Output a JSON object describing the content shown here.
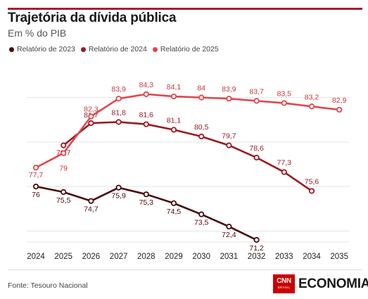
{
  "header": {
    "title": "Trajetória da dívida pública",
    "subtitle": "Em % do PIB"
  },
  "footer": {
    "source": "Fonte: Tesouro Nacional",
    "brand_logo": "CNN",
    "brand_logo_sub": "BRASIL",
    "brand_section": "ECONOMIA"
  },
  "chart_data": {
    "type": "line",
    "title": "Trajetória da dívida pública",
    "subtitle": "Em % do PIB",
    "x": [
      "2024",
      "2025",
      "2026",
      "2027",
      "2028",
      "2029",
      "2030",
      "2031",
      "2032",
      "2033",
      "2034",
      "2035"
    ],
    "ylim": [
      70,
      86
    ],
    "grid": true,
    "legend_position": "top-left",
    "series": [
      {
        "name": "Relatório de 2023",
        "color": "#4a0a0a",
        "values": [
          76,
          75.5,
          74.7,
          75.9,
          75.3,
          74.5,
          73.5,
          72.4,
          71.2,
          null,
          null,
          null
        ],
        "labels": [
          "76",
          "75,5",
          "74,7",
          "75,9",
          "75,3",
          "74,5",
          "73,5",
          "72,4",
          "71,2",
          null,
          null,
          null
        ]
      },
      {
        "name": "Relatório de 2024",
        "color": "#9a1a24",
        "values": [
          null,
          79.7,
          81.7,
          81.8,
          81.6,
          81.1,
          80.5,
          79.7,
          78.6,
          77.3,
          75.6,
          null
        ],
        "labels": [
          null,
          "79,7",
          "81,7",
          "81,8",
          "81,6",
          "81,1",
          "80,5",
          "79,7",
          "78,6",
          "77,3",
          "75,6",
          null
        ]
      },
      {
        "name": "Relatório de 2025",
        "color": "#e0474c",
        "values": [
          77.7,
          79,
          82.3,
          83.9,
          84.3,
          84.1,
          84,
          83.9,
          83.7,
          83.5,
          83.2,
          82.9
        ],
        "labels": [
          "77,7",
          "79",
          "82,3",
          "83,9",
          "84,3",
          "84,1",
          "84",
          "83,9",
          "83,7",
          "83,5",
          "83,2",
          "82,9"
        ]
      }
    ]
  }
}
